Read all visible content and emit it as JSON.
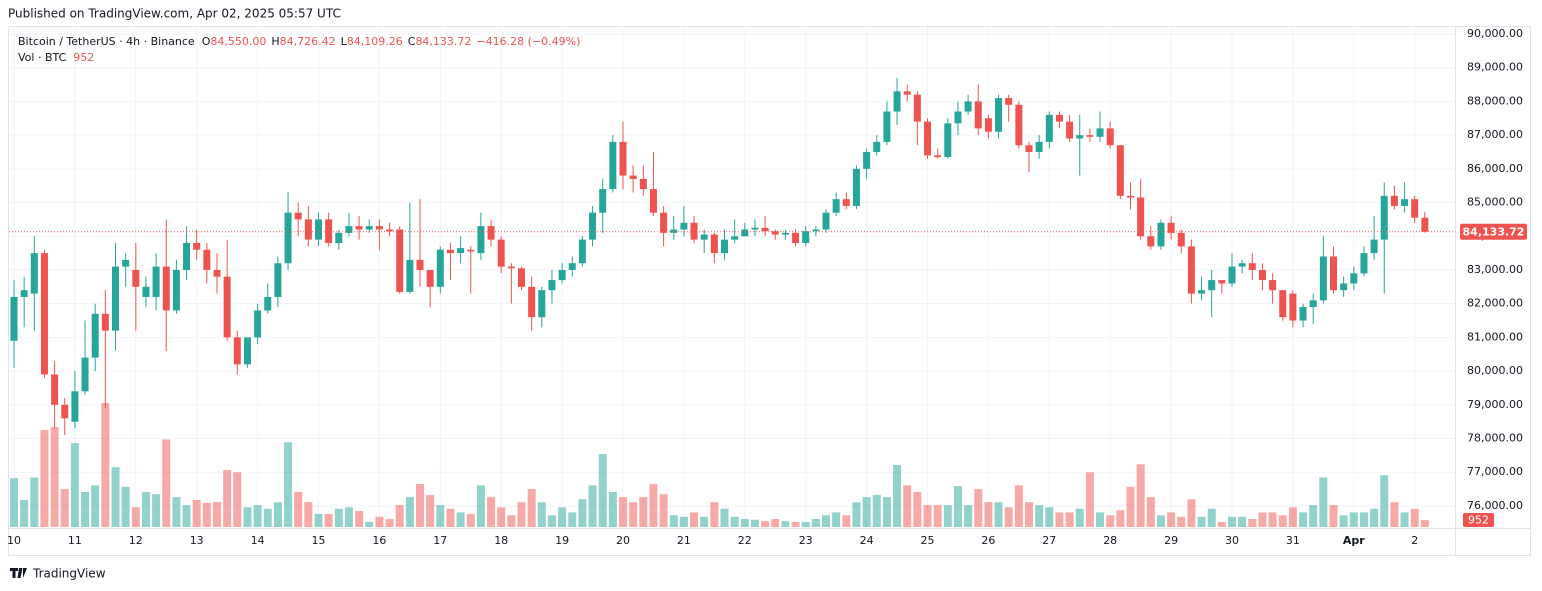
{
  "published": "Published on TradingView.com, Apr 02, 2025 05:57 UTC",
  "brand": "TradingView",
  "chart_data": {
    "type": "candlestick",
    "title": "Bitcoin / TetherUS · 4h · Binance",
    "legend": {
      "fields": [
        {
          "key": "O",
          "label": "84,550.00"
        },
        {
          "key": "H",
          "label": "84,726.42"
        },
        {
          "key": "L",
          "label": "84,109.26"
        },
        {
          "key": "C",
          "label": "84,133.72"
        }
      ],
      "change": "−416.28 (−0.49%)",
      "volume_name": "Vol · BTC",
      "volume_label": "952"
    },
    "last_price_label": "84,133.72",
    "up_color": "#26a69a",
    "down_color": "#ef5350",
    "categories": [
      "10",
      null,
      null,
      null,
      null,
      null,
      "11",
      null,
      null,
      null,
      null,
      null,
      "12",
      null,
      null,
      null,
      null,
      null,
      "13",
      null,
      null,
      null,
      null,
      null,
      "14",
      null,
      null,
      null,
      null,
      null,
      "15",
      null,
      null,
      null,
      null,
      null,
      "16",
      null,
      null,
      null,
      null,
      null,
      "17",
      null,
      null,
      null,
      null,
      null,
      "18",
      null,
      null,
      null,
      null,
      null,
      "19",
      null,
      null,
      null,
      null,
      null,
      "20",
      null,
      null,
      null,
      null,
      null,
      "21",
      null,
      null,
      null,
      null,
      null,
      "22",
      null,
      null,
      null,
      null,
      null,
      "23",
      null,
      null,
      null,
      null,
      null,
      "24",
      null,
      null,
      null,
      null,
      null,
      "25",
      null,
      null,
      null,
      null,
      null,
      "26",
      null,
      null,
      null,
      null,
      null,
      "27",
      null,
      null,
      null,
      null,
      null,
      "28",
      null,
      null,
      null,
      null,
      null,
      "29",
      null,
      null,
      null,
      null,
      null,
      "30",
      null,
      null,
      null,
      null,
      null,
      "31",
      null,
      null,
      null,
      null,
      null,
      "Apr",
      null,
      null,
      null,
      null,
      null,
      "2",
      null
    ],
    "open": [
      80900,
      82200,
      82300,
      83500,
      79900,
      79000,
      78500,
      79400,
      80400,
      81700,
      81200,
      83100,
      83000,
      82200,
      82200,
      83100,
      81800,
      83000,
      83800,
      83600,
      83000,
      82800,
      81000,
      80200,
      81000,
      81800,
      82200,
      83200,
      84700,
      84500,
      83900,
      84500,
      83800,
      84100,
      84300,
      84200,
      84300,
      84200,
      84200,
      82350,
      83300,
      83000,
      82500,
      83600,
      83500,
      83600,
      83500,
      84300,
      83900,
      83100,
      83050,
      82500,
      81600,
      82400,
      82700,
      83000,
      83200,
      83900,
      84700,
      85400,
      86800,
      85800,
      85700,
      85400,
      84700,
      84100,
      84200,
      84400,
      83900,
      84050,
      83500,
      83900,
      84000,
      84200,
      84250,
      84150,
      84050,
      84100,
      83800,
      84150,
      84200,
      84700,
      85100,
      84900,
      86000,
      86500,
      86800,
      87700,
      88300,
      88200,
      87400,
      86400,
      86350,
      87350,
      87700,
      88000,
      87500,
      87100,
      88100,
      87900,
      86700,
      86500,
      86800,
      87600,
      87400,
      86900,
      87000,
      86950,
      87200,
      86700,
      85200,
      85150,
      84000,
      83700,
      84400,
      84100,
      83700,
      82300,
      82400,
      82700,
      82600,
      83100,
      83200,
      83000,
      82700,
      82400,
      82300,
      81500,
      81900,
      82100,
      83400,
      82400,
      82600,
      82900,
      83500,
      83900,
      85200,
      84900,
      85100,
      84550
    ],
    "high": [
      82700,
      82800,
      84000,
      83600,
      80300,
      79200,
      80000,
      81500,
      82000,
      82400,
      83800,
      83500,
      83800,
      82800,
      83500,
      84500,
      83300,
      84300,
      84200,
      83800,
      83500,
      83900,
      81200,
      81000,
      82000,
      82600,
      83400,
      85300,
      85000,
      84900,
      84700,
      84700,
      84200,
      84700,
      84600,
      84500,
      84500,
      84400,
      84300,
      85000,
      85100,
      83000,
      83700,
      83800,
      84000,
      83700,
      84700,
      84500,
      84000,
      83200,
      83100,
      82800,
      82500,
      83000,
      83200,
      83400,
      84000,
      84900,
      85700,
      87000,
      87400,
      86100,
      86100,
      86500,
      84900,
      84600,
      84900,
      84600,
      84200,
      84100,
      84200,
      84500,
      84400,
      84500,
      84600,
      84200,
      84200,
      84200,
      84300,
      84300,
      84800,
      85300,
      85300,
      86100,
      86600,
      87000,
      88000,
      88700,
      88500,
      88300,
      87500,
      86600,
      87500,
      88000,
      88200,
      88500,
      87600,
      88200,
      88200,
      88000,
      86800,
      87000,
      87700,
      87700,
      87600,
      87600,
      87200,
      87700,
      87400,
      86700,
      85600,
      85700,
      84300,
      84500,
      84600,
      84200,
      83900,
      82800,
      83000,
      82700,
      83500,
      83300,
      83500,
      83200,
      82900,
      82400,
      82400,
      82000,
      82300,
      84000,
      83700,
      82800,
      83100,
      83700,
      84600,
      85600,
      85500,
      85600,
      85200,
      84726.42
    ],
    "low": [
      80100,
      81300,
      81200,
      79800,
      78300,
      78100,
      78300,
      79300,
      80000,
      78900,
      80600,
      82500,
      81200,
      81900,
      81800,
      80600,
      81700,
      82700,
      83300,
      82600,
      82300,
      80900,
      79900,
      80100,
      80800,
      81700,
      81900,
      83000,
      84000,
      83700,
      83700,
      83700,
      83600,
      84000,
      83900,
      84100,
      83600,
      84000,
      82300,
      82300,
      82500,
      81900,
      82300,
      82700,
      83200,
      82300,
      83300,
      83700,
      82900,
      82000,
      82400,
      81200,
      81300,
      82000,
      82600,
      82800,
      83100,
      83700,
      84100,
      85300,
      85400,
      85300,
      85200,
      84600,
      83700,
      83900,
      84000,
      83800,
      83500,
      83200,
      83300,
      83800,
      84000,
      84000,
      84000,
      83900,
      83900,
      83700,
      83700,
      84000,
      84100,
      84600,
      84800,
      84800,
      85700,
      86400,
      86700,
      87300,
      88000,
      86700,
      86300,
      86300,
      86300,
      87000,
      87600,
      87000,
      86900,
      86900,
      87400,
      86600,
      85900,
      86300,
      86600,
      87200,
      86800,
      85800,
      86800,
      86800,
      86600,
      85100,
      84800,
      83900,
      83600,
      83600,
      83900,
      83500,
      82000,
      82100,
      81600,
      82300,
      82500,
      82900,
      82700,
      82400,
      82000,
      81500,
      81300,
      81300,
      81400,
      82000,
      82300,
      82200,
      82400,
      82800,
      83300,
      82300,
      84800,
      84700,
      84400,
      84109.26
    ],
    "close": [
      82200,
      82400,
      83500,
      79900,
      79000,
      78600,
      79400,
      80400,
      81700,
      81200,
      83100,
      83300,
      82500,
      82500,
      83100,
      81800,
      83000,
      83800,
      83600,
      83000,
      82800,
      81000,
      80200,
      81000,
      81800,
      82200,
      83200,
      84700,
      84500,
      83900,
      84500,
      83800,
      84100,
      84300,
      84200,
      84300,
      84200,
      84150,
      82350,
      83300,
      83000,
      82500,
      83600,
      83500,
      83650,
      83550,
      84300,
      83900,
      83100,
      83050,
      82500,
      81600,
      82400,
      82700,
      83000,
      83200,
      83900,
      84700,
      85400,
      86800,
      85800,
      85700,
      85400,
      84700,
      84100,
      84200,
      84400,
      83900,
      84050,
      83500,
      83900,
      84000,
      84200,
      84250,
      84150,
      84050,
      84100,
      83800,
      84150,
      84200,
      84700,
      85100,
      84900,
      86000,
      86500,
      86800,
      87700,
      88300,
      88200,
      87400,
      86400,
      86350,
      87350,
      87700,
      88000,
      87200,
      87100,
      88100,
      87900,
      86700,
      86500,
      86800,
      87600,
      87400,
      86900,
      87000,
      86950,
      87200,
      86700,
      85200,
      85150,
      84000,
      83700,
      84400,
      84100,
      83700,
      82300,
      82400,
      82700,
      82600,
      83100,
      83200,
      83000,
      82700,
      82400,
      81600,
      81500,
      81900,
      82100,
      83400,
      82400,
      82600,
      82900,
      83500,
      83900,
      85200,
      84900,
      85100,
      84550,
      84133.72
    ],
    "volume": [
      6700,
      3700,
      6800,
      13300,
      13700,
      5200,
      11500,
      4800,
      5700,
      17000,
      8200,
      5500,
      2700,
      4800,
      4500,
      12000,
      4100,
      3000,
      3700,
      3300,
      3400,
      7800,
      7500,
      2700,
      3000,
      2500,
      3400,
      11600,
      4800,
      3400,
      1800,
      1800,
      2500,
      2700,
      2200,
      700,
      1400,
      1100,
      3000,
      4100,
      5900,
      4400,
      3000,
      2500,
      2000,
      1800,
      5700,
      4100,
      2700,
      1600,
      3400,
      5200,
      3400,
      1600,
      2700,
      2000,
      3800,
      5700,
      10000,
      4800,
      4100,
      3400,
      4100,
      5900,
      4500,
      1600,
      1400,
      2000,
      1400,
      3400,
      2500,
      1400,
      1100,
      1000,
      800,
      1100,
      800,
      700,
      700,
      1100,
      1600,
      2000,
      1600,
      3400,
      4100,
      4400,
      4100,
      8500,
      5700,
      4800,
      3000,
      3000,
      3000,
      5600,
      3000,
      5200,
      3400,
      3400,
      2700,
      5700,
      3400,
      3000,
      2700,
      2000,
      2000,
      2500,
      7500,
      2000,
      1600,
      2300,
      5500,
      8600,
      4100,
      1600,
      2000,
      1400,
      3800,
      1400,
      2500,
      700,
      1400,
      1400,
      1100,
      2000,
      2000,
      1600,
      2700,
      2000,
      3000,
      6800,
      3000,
      1600,
      2000,
      2000,
      2500,
      7100,
      3400,
      2000,
      2500,
      952
    ],
    "ylim": [
      75200,
      90000
    ],
    "vlim": [
      0,
      17000
    ],
    "yticks": [
      {
        "value": 76000,
        "label": "76,000.00"
      },
      {
        "value": 77000,
        "label": "77,000.00"
      },
      {
        "value": 78000,
        "label": "78,000.00"
      },
      {
        "value": 79000,
        "label": "79,000.00"
      },
      {
        "value": 80000,
        "label": "80,000.00"
      },
      {
        "value": 81000,
        "label": "81,000.00"
      },
      {
        "value": 82000,
        "label": "82,000.00"
      },
      {
        "value": 83000,
        "label": "83,000.00"
      },
      {
        "value": 84000,
        "label": "84,000.00"
      },
      {
        "value": 85000,
        "label": "85,000.00"
      },
      {
        "value": 86000,
        "label": "86,000.00"
      },
      {
        "value": 87000,
        "label": "87,000.00"
      },
      {
        "value": 88000,
        "label": "88,000.00"
      },
      {
        "value": 89000,
        "label": "89,000.00"
      },
      {
        "value": 90000,
        "label": "90,000.00"
      }
    ],
    "grid": true
  }
}
